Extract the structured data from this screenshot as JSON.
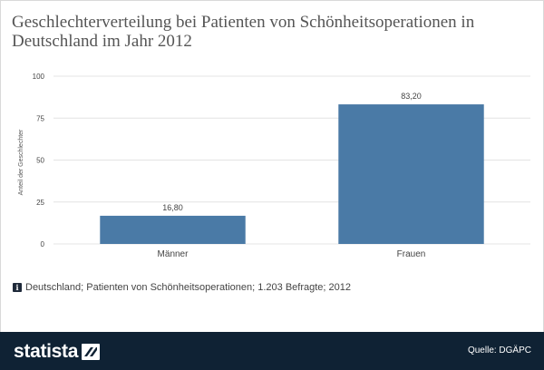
{
  "title": "Geschlechterverteilung bei Patienten von Schönheitsoperationen in Deutschland im Jahr 2012",
  "note": "Deutschland; Patienten von Schönheitsoperationen; 1.203 Befragte; 2012",
  "info_icon_glyph": "i",
  "footer": {
    "logo": "statista",
    "source": "Quelle: DGÄPC"
  },
  "colors": {
    "bar": "#4a7aa6",
    "footer_bg": "#0f2234",
    "gridline": "#e4e4e4"
  },
  "chart_data": {
    "type": "bar",
    "categories": [
      "Männer",
      "Frauen"
    ],
    "values": [
      16.8,
      83.2
    ],
    "value_labels": [
      "16,80",
      "83,20"
    ],
    "ylabel": "Anteil der Geschlechter",
    "xlabel": "",
    "ylim": [
      0,
      100
    ],
    "yticks": [
      0,
      25,
      50,
      75,
      100
    ],
    "ytick_labels": [
      "0",
      "25",
      "50",
      "75",
      "100"
    ],
    "grid": true
  }
}
